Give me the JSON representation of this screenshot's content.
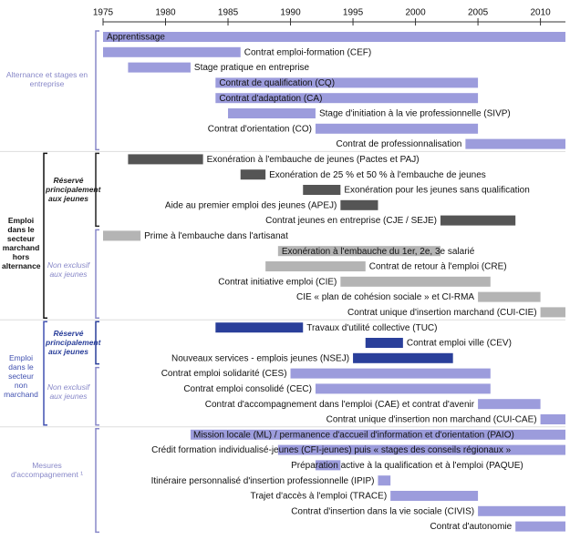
{
  "chart_data": {
    "type": "gantt",
    "xlim": [
      1975,
      2012
    ],
    "xticks": [
      1975,
      1980,
      1985,
      1990,
      1995,
      2000,
      2005,
      2010
    ],
    "sections": [
      {
        "label": "Alternance et stages en entreprise",
        "blocks": [
          {
            "color": "#9c9cdc",
            "tasks": [
              {
                "label": "Apprentissage",
                "start": 1975,
                "end": 2012
              },
              {
                "label": "Contrat emploi-formation (CEF)",
                "start": 1975,
                "end": 1986
              },
              {
                "label": "Stage pratique en entreprise",
                "start": 1977,
                "end": 1982
              },
              {
                "label": "Contrat de qualification (CQ)",
                "start": 1984,
                "end": 2005
              },
              {
                "label": "Contrat d'adaptation (CA)",
                "start": 1984,
                "end": 2005
              },
              {
                "label": "Stage d'initiation à la vie professionnelle (SIVP)",
                "start": 1985,
                "end": 1992
              },
              {
                "label": "Contrat d'orientation (CO)",
                "start": 1992,
                "end": 2005
              },
              {
                "label": "Contrat de professionnalisation",
                "start": 2004,
                "end": 2012
              }
            ]
          }
        ]
      },
      {
        "label": "Emploi dans le secteur marchand hors alternance",
        "blocks": [
          {
            "label": "Réservé principalement aux jeunes",
            "color": "#555555",
            "tasks": [
              {
                "label": "Exonération à l'embauche de jeunes (Pactes et PAJ)",
                "start": 1977,
                "end": 1983
              },
              {
                "label": "Exonération de 25 % et 50 % à l'embauche de jeunes",
                "start": 1986,
                "end": 1988
              },
              {
                "label": "Exonération pour les jeunes sans qualification",
                "start": 1991,
                "end": 1994
              },
              {
                "label": "Aide au premier emploi des jeunes (APEJ)",
                "start": 1994,
                "end": 1997
              },
              {
                "label": "Contrat jeunes en entreprise (CJE / SEJE)",
                "start": 2002,
                "end": 2008
              }
            ]
          },
          {
            "label": "Non exclusif aux jeunes",
            "color": "#b4b4b4",
            "tasks": [
              {
                "label": "Prime à l'embauche dans l'artisanat",
                "start": 1975,
                "end": 1978
              },
              {
                "label": "Exonération à l'embauche du 1er, 2e, 3e salarié",
                "start": 1989,
                "end": 2002
              },
              {
                "label": "Contrat de retour à l'emploi (CRE)",
                "start": 1988,
                "end": 1996
              },
              {
                "label": "Contrat initiative emploi (CIE)",
                "start": 1994,
                "end": 2006
              },
              {
                "label": "CIE « plan de cohésion sociale » et CI-RMA",
                "start": 2005,
                "end": 2010
              },
              {
                "label": "Contrat unique d'insertion marchand (CUI-CIE)",
                "start": 2010,
                "end": 2012
              }
            ]
          }
        ]
      },
      {
        "label": "Emploi dans le secteur non marchand",
        "blocks": [
          {
            "label": "Réservé principalement aux jeunes",
            "color": "#2a3f9a",
            "tasks": [
              {
                "label": "Travaux d'utilité collective (TUC)",
                "start": 1984,
                "end": 1991
              },
              {
                "label": "Contrat emploi ville (CEV)",
                "start": 1996,
                "end": 1999
              },
              {
                "label": "Nouveaux services - emplois jeunes (NSEJ)",
                "start": 1995,
                "end": 2003
              }
            ]
          },
          {
            "label": "Non exclusif aux jeunes",
            "color": "#9c9cdc",
            "tasks": [
              {
                "label": "Contrat emploi solidarité (CES)",
                "start": 1990,
                "end": 2006
              },
              {
                "label": "Contrat emploi consolidé (CEC)",
                "start": 1992,
                "end": 2006
              },
              {
                "label": "Contrat d'accompagnement dans l'emploi (CAE) et contrat d'avenir",
                "start": 2005,
                "end": 2010
              },
              {
                "label": "Contrat unique d'insertion non marchand (CUI-CAE)",
                "start": 2010,
                "end": 2012
              }
            ]
          }
        ]
      },
      {
        "label": "Mesures d'accompagnement ¹",
        "blocks": [
          {
            "color": "#9c9cdc",
            "tasks": [
              {
                "label": "Mission locale (ML) / permanence d'accueil d'information et d'orientation (PAIO)",
                "start": 1982,
                "end": 2012
              },
              {
                "label": "Crédit formation individualisé-jeunes (CFI-jeunes) puis « stages des conseils régionaux »",
                "start": 1989,
                "end": 2012
              },
              {
                "label": "Préparation active à la qualification et à l'emploi (PAQUE)",
                "start": 1992,
                "end": 1994
              },
              {
                "label": "Itinéraire personnalisé d'insertion professionnelle (IPIP)",
                "start": 1997,
                "end": 1998
              },
              {
                "label": "Trajet d'accès à l'emploi (TRACE)",
                "start": 1998,
                "end": 2005
              },
              {
                "label": "Contrat d'insertion dans la vie sociale (CIVIS)",
                "start": 2005,
                "end": 2012
              },
              {
                "label": "Contrat d'autonomie",
                "start": 2008,
                "end": 2012
              }
            ]
          }
        ]
      }
    ]
  }
}
